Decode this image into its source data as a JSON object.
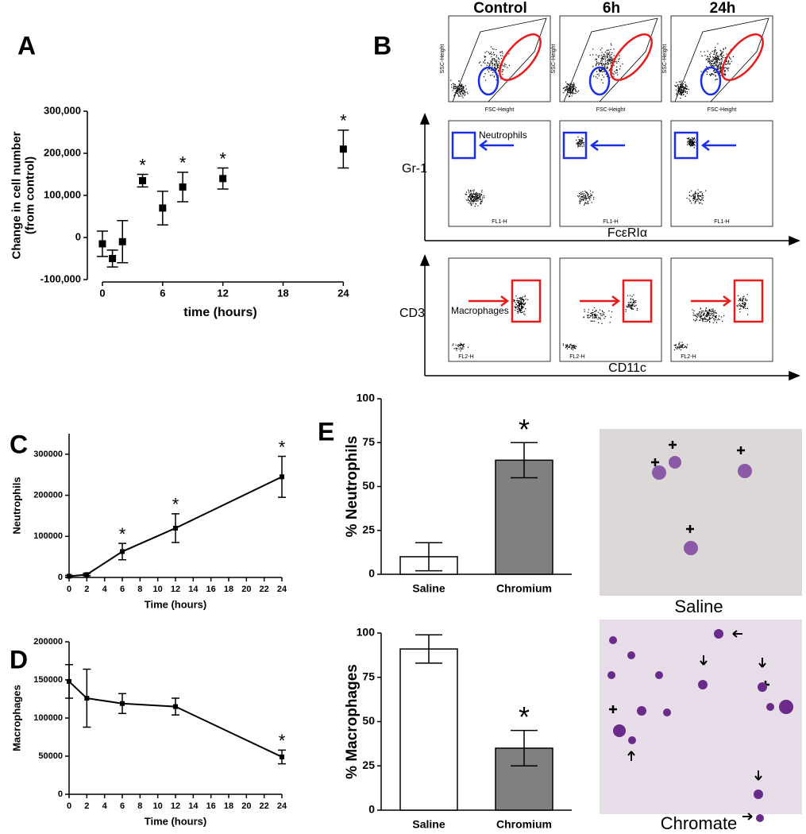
{
  "figure": {
    "panel_labels": [
      "A",
      "B",
      "C",
      "D",
      "E"
    ],
    "flow": {
      "columns": [
        "Control",
        "6h",
        "24h"
      ],
      "scatter_axes": {
        "x": "FSC-Height",
        "y": "SSC-Height"
      },
      "rows": [
        {
          "y_label": "Gr-1",
          "x_label": "FcεRIα",
          "gate_label": "Neutrophils",
          "channel_x": "FL1-H"
        },
        {
          "y_label": "CD3",
          "x_label": "CD11c",
          "gate_label": "Macrophages",
          "channel_x": "FL2-H"
        }
      ]
    },
    "micrographs": [
      "Saline",
      "Chromate"
    ]
  },
  "chart_data": [
    {
      "type": "scatter",
      "x": [
        0,
        1,
        2,
        4,
        6,
        8,
        12,
        24
      ],
      "values": [
        -15000,
        -50000,
        -10000,
        135000,
        70000,
        120000,
        140000,
        210000
      ],
      "errors": [
        30000,
        20000,
        50000,
        15000,
        40000,
        35000,
        25000,
        45000
      ],
      "xlim": [
        -1.5,
        25
      ],
      "xticks": [
        0,
        6,
        12,
        18,
        24
      ],
      "ylim": [
        -100000,
        300000
      ],
      "yticks": [
        {
          "value": -100000,
          "label": "-100,000"
        },
        0,
        {
          "value": 100000,
          "label": "100,000"
        },
        {
          "value": 200000,
          "label": "200,000"
        },
        {
          "value": 300000,
          "label": "300,000"
        }
      ],
      "xlabel": "time (hours)",
      "ylabel": [
        "Change in cell number",
        "(from control)"
      ],
      "annotations": [
        {
          "x": 4,
          "text": "*"
        },
        {
          "x": 8,
          "text": "*"
        },
        {
          "x": 12,
          "text": "*"
        },
        {
          "x": 24,
          "text": "*"
        }
      ],
      "color": "#000000"
    },
    {
      "type": "line",
      "x": [
        0,
        2,
        6,
        12,
        24
      ],
      "values": [
        3000,
        7000,
        63000,
        120000,
        245000
      ],
      "errors": [
        2000,
        3000,
        20000,
        35000,
        50000
      ],
      "xlim": [
        0,
        24
      ],
      "xticks": [
        0,
        2,
        4,
        6,
        8,
        10,
        12,
        14,
        16,
        18,
        20,
        22,
        24
      ],
      "ylim": [
        0,
        350000
      ],
      "yticks": [
        0,
        100000,
        200000,
        300000
      ],
      "xlabel": "Time (hours)",
      "ylabel": [
        "Neutrophils"
      ],
      "annotations": [
        {
          "x": 6,
          "text": "*"
        },
        {
          "x": 12,
          "text": "*"
        },
        {
          "x": 24,
          "text": "*"
        }
      ],
      "color": "#000000"
    },
    {
      "type": "line",
      "x": [
        0,
        2,
        6,
        12,
        24
      ],
      "values": [
        148000,
        126000,
        119000,
        115000,
        49000
      ],
      "errors": [
        22000,
        38000,
        13000,
        11000,
        9000
      ],
      "xlim": [
        0,
        24
      ],
      "xticks": [
        0,
        2,
        4,
        6,
        8,
        10,
        12,
        14,
        16,
        18,
        20,
        22,
        24
      ],
      "ylim": [
        0,
        200000
      ],
      "yticks": [
        0,
        50000,
        100000,
        150000,
        200000
      ],
      "xlabel": "Time (hours)",
      "ylabel": [
        "Macrophages"
      ],
      "annotations": [
        {
          "x": 24,
          "text": "*"
        }
      ],
      "color": "#000000"
    },
    {
      "type": "bar",
      "categories": [
        "Saline",
        "Chromium"
      ],
      "values": [
        10,
        65
      ],
      "errors": [
        8,
        10
      ],
      "colors": [
        "#ffffff",
        "#808080"
      ],
      "ylim": [
        0,
        100
      ],
      "yticks": [
        0,
        25,
        50,
        75,
        100
      ],
      "ylabel": [
        "% Neutrophils"
      ],
      "annotations": [
        {
          "category": "Chromium",
          "text": "*"
        }
      ]
    },
    {
      "type": "bar",
      "categories": [
        "Saline",
        "Chromium"
      ],
      "values": [
        91,
        35
      ],
      "errors": [
        8,
        10
      ],
      "colors": [
        "#ffffff",
        "#808080"
      ],
      "ylim": [
        0,
        100
      ],
      "yticks": [
        0,
        25,
        50,
        75,
        100
      ],
      "ylabel": [
        "% Macrophages"
      ],
      "annotations": [
        {
          "category": "Chromium",
          "text": "*"
        }
      ]
    }
  ]
}
